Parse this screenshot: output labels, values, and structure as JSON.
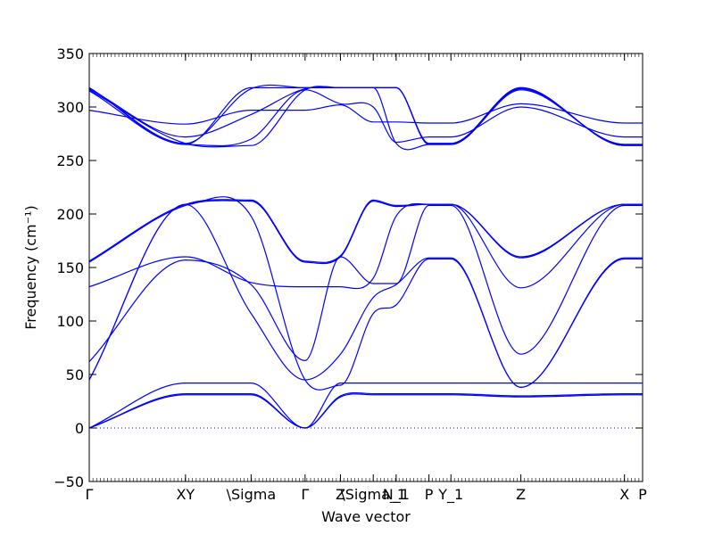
{
  "chart_data": {
    "type": "line",
    "xlabel": "Wave vector",
    "ylabel": "Frequency (cm⁻¹)",
    "ylim": [
      -50,
      350
    ],
    "yticks": [
      -50,
      0,
      50,
      100,
      150,
      200,
      250,
      300,
      350
    ],
    "xticks": [
      {
        "label": "Γ",
        "k": 0.0
      },
      {
        "label": "XY",
        "k": 0.223
      },
      {
        "label": "\\Sigma",
        "k": 0.375
      },
      {
        "label": "Γ",
        "k": 0.5
      },
      {
        "label": "Z",
        "k": 0.582
      },
      {
        "label": "\\Sigma_1",
        "k": 0.658
      },
      {
        "label": "N_1",
        "k": 0.711
      },
      {
        "label": "P",
        "k": 0.787
      },
      {
        "label": "Y_1",
        "k": 0.838
      },
      {
        "label": "Z",
        "k": 1.0
      },
      {
        "label": "X",
        "k": 1.24
      },
      {
        "label": "P",
        "k": 1.282
      }
    ],
    "zero_line": {
      "y": 0,
      "style": "dotted"
    },
    "line_color": "#0000ff",
    "bands": [
      {
        "k": [
          0.0,
          0.223,
          0.375,
          0.5,
          0.582,
          0.658,
          0.711,
          0.787,
          0.838,
          1.0,
          1.24,
          1.282
        ],
        "y": [
          0,
          31,
          31,
          0,
          29,
          31,
          31,
          31,
          31,
          29,
          31,
          31
        ]
      },
      {
        "k": [
          0.0,
          0.223,
          0.375,
          0.5,
          0.582,
          0.658,
          0.711,
          0.787,
          0.838,
          1.0,
          1.24,
          1.282
        ],
        "y": [
          0,
          32,
          32,
          0,
          30,
          32,
          32,
          32,
          32,
          30,
          32,
          32
        ]
      },
      {
        "k": [
          0.0,
          0.223,
          0.375,
          0.5,
          0.582,
          0.658,
          0.711,
          0.787,
          0.838,
          1.0,
          1.24,
          1.282
        ],
        "y": [
          0,
          42,
          42,
          0,
          42,
          42,
          42,
          42,
          42,
          42,
          42,
          42
        ]
      },
      {
        "k": [
          0.0,
          0.223,
          0.375,
          0.5,
          0.582,
          0.658,
          0.711,
          0.787,
          0.838,
          1.0,
          1.24,
          1.282
        ],
        "y": [
          45,
          209,
          198,
          45,
          40,
          107,
          115,
          158,
          158,
          38,
          158,
          158
        ]
      },
      {
        "k": [
          0.0,
          0.223,
          0.375,
          0.5,
          0.582,
          0.658,
          0.711,
          0.787,
          0.838,
          1.0,
          1.24,
          1.282
        ],
        "y": [
          45,
          209,
          107,
          45,
          69,
          122,
          134,
          159,
          159,
          38,
          159,
          159
        ]
      },
      {
        "k": [
          0.0,
          0.223,
          0.375,
          0.5,
          0.582,
          0.658,
          0.711,
          0.787,
          0.838,
          1.0,
          1.24,
          1.282
        ],
        "y": [
          62,
          157,
          134,
          63,
          160,
          135,
          135,
          208,
          208,
          69,
          208,
          208
        ]
      },
      {
        "k": [
          0.0,
          0.223,
          0.375,
          0.5,
          0.582,
          0.658,
          0.711,
          0.787,
          0.838,
          1.0,
          1.24,
          1.282
        ],
        "y": [
          132,
          160,
          136,
          132,
          132,
          140,
          198,
          209,
          209,
          131,
          209,
          209
        ]
      },
      {
        "k": [
          0.0,
          0.223,
          0.375,
          0.5,
          0.582,
          0.658,
          0.711,
          0.787,
          0.838,
          1.0,
          1.24,
          1.282
        ],
        "y": [
          155,
          208,
          212,
          155,
          160,
          212,
          207,
          209,
          209,
          159,
          209,
          209
        ]
      },
      {
        "k": [
          0.0,
          0.223,
          0.375,
          0.5,
          0.582,
          0.658,
          0.711,
          0.787,
          0.838,
          1.0,
          1.24,
          1.282
        ],
        "y": [
          156,
          209,
          213,
          156,
          161,
          213,
          208,
          209,
          209,
          160,
          209,
          209
        ]
      },
      {
        "k": [
          0.0,
          0.223,
          0.375,
          0.5,
          0.582,
          0.658,
          0.711,
          0.787,
          0.838,
          1.0,
          1.24,
          1.282
        ],
        "y": [
          297,
          284,
          297,
          297,
          302,
          286,
          286,
          285,
          285,
          303,
          285,
          285
        ]
      },
      {
        "k": [
          0.0,
          0.223,
          0.375,
          0.5,
          0.582,
          0.658,
          0.711,
          0.787,
          0.838,
          1.0,
          1.24,
          1.282
        ],
        "y": [
          315,
          265,
          270,
          316,
          303,
          300,
          267,
          272,
          272,
          300,
          272,
          272
        ]
      },
      {
        "k": [
          0.0,
          0.223,
          0.375,
          0.5,
          0.582,
          0.658,
          0.711,
          0.787,
          0.838,
          1.0,
          1.24,
          1.282
        ],
        "y": [
          316,
          266,
          264,
          316,
          318,
          318,
          266,
          265,
          265,
          316,
          265,
          265
        ]
      },
      {
        "k": [
          0.0,
          0.223,
          0.375,
          0.5,
          0.582,
          0.658,
          0.711,
          0.787,
          0.838,
          1.0,
          1.24,
          1.282
        ],
        "y": [
          317,
          272,
          293,
          317,
          318,
          318,
          318,
          265,
          265,
          317,
          265,
          265
        ]
      },
      {
        "k": [
          0.0,
          0.223,
          0.375,
          0.5,
          0.582,
          0.658,
          0.711,
          0.787,
          0.838,
          1.0,
          1.24,
          1.282
        ],
        "y": [
          318,
          266,
          317,
          318,
          318,
          318,
          318,
          266,
          266,
          318,
          264,
          264
        ]
      },
      {
        "k": [
          0.0,
          0.223,
          0.375,
          0.5,
          0.582,
          0.658,
          0.711,
          0.787,
          0.838,
          1.0,
          1.24,
          1.282
        ],
        "y": [
          318,
          265,
          318,
          318,
          318,
          318,
          318,
          266,
          266,
          318,
          264,
          264
        ]
      }
    ]
  }
}
